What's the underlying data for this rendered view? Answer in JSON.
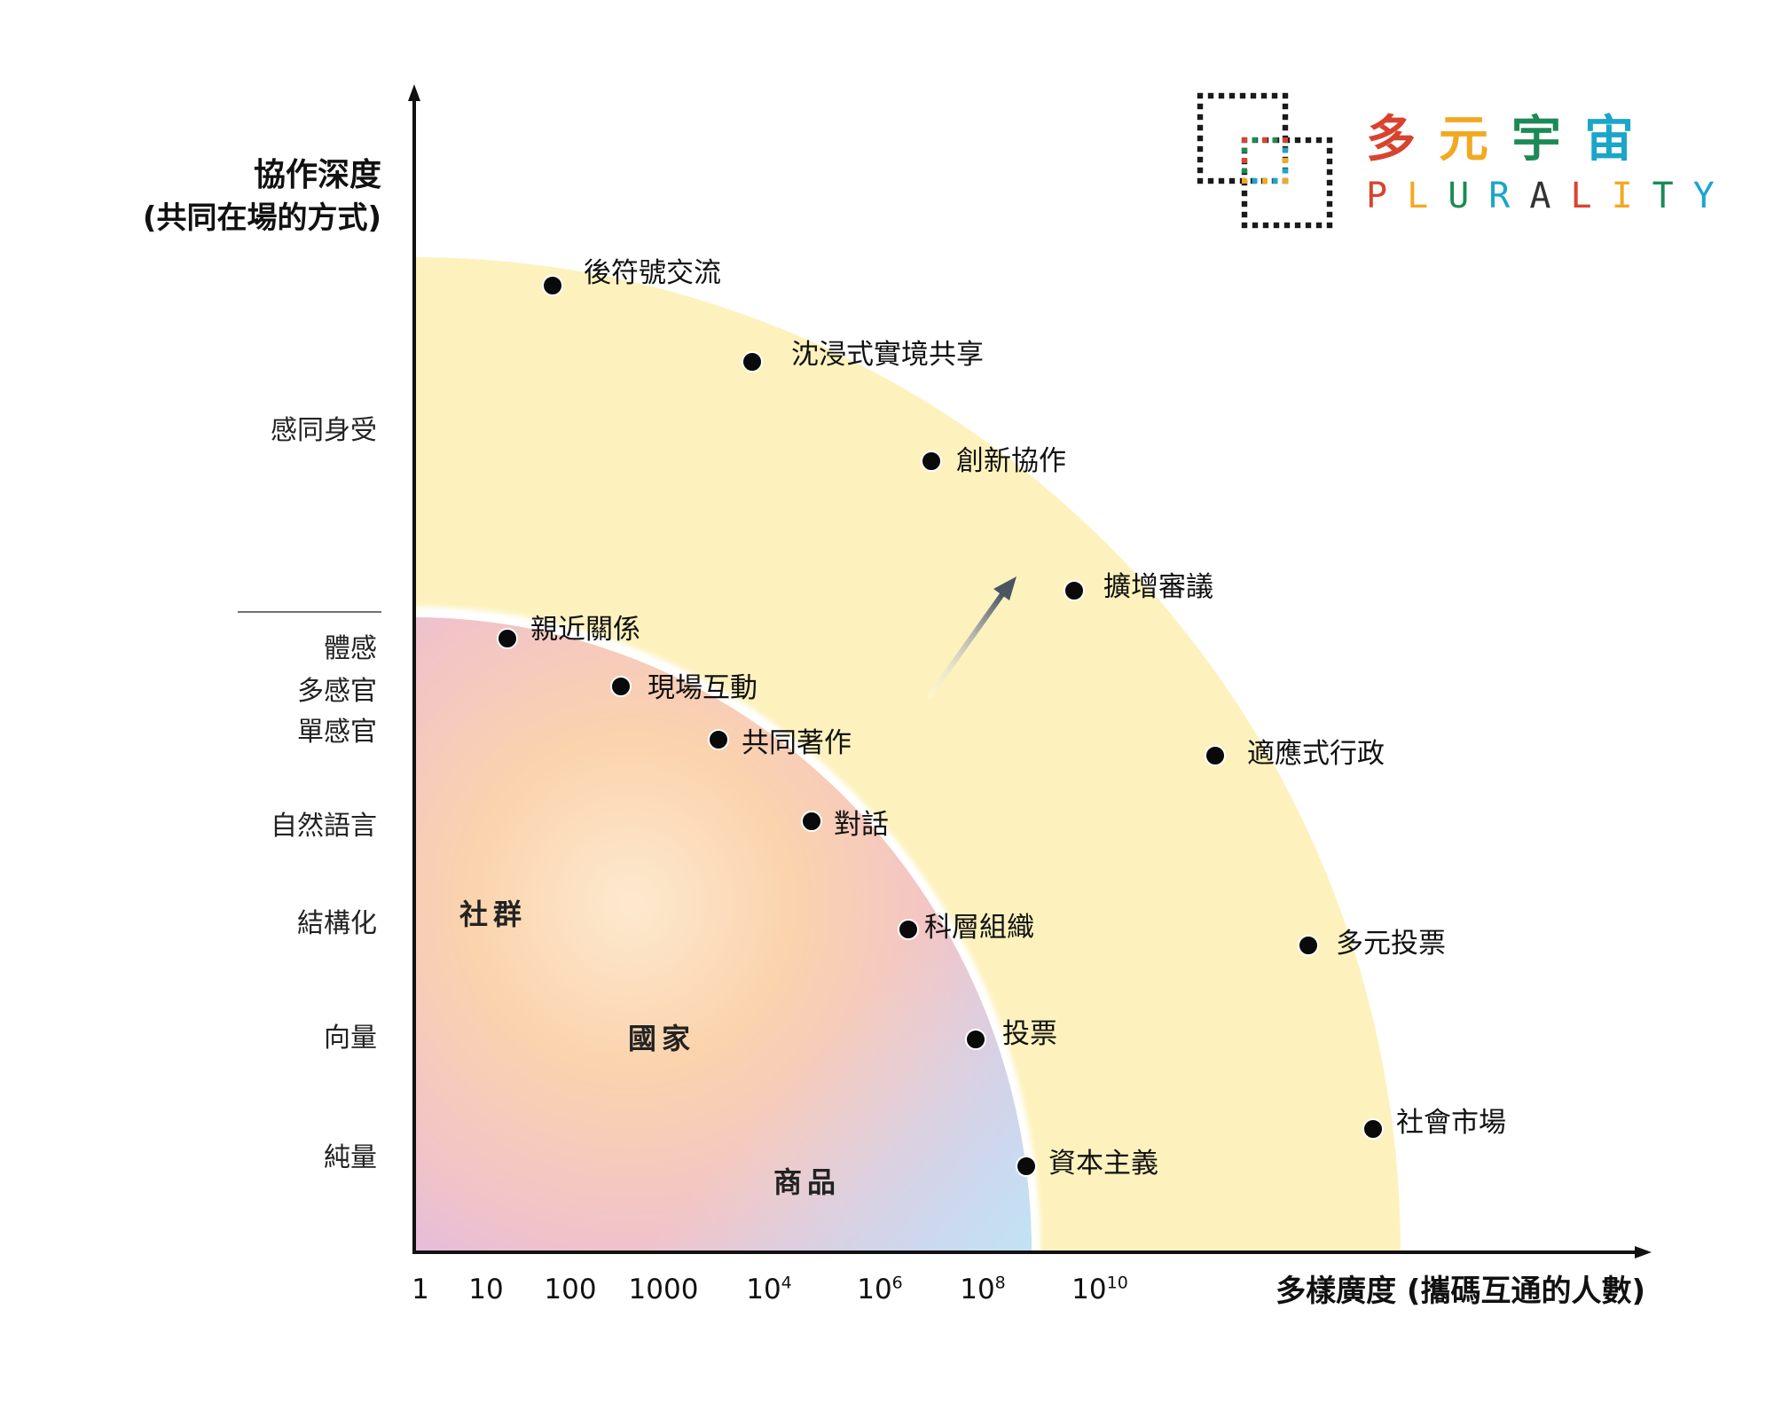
{
  "logo": {
    "chinese_chars": [
      {
        "text": "多",
        "color": "#d8432f"
      },
      {
        "text": "元",
        "color": "#f2a922"
      },
      {
        "text": "宇",
        "color": "#1d8a55"
      },
      {
        "text": "宙",
        "color": "#1aa6c9"
      }
    ],
    "english_chars": [
      {
        "text": "P",
        "color": "#d8432f"
      },
      {
        "text": "L",
        "color": "#f2a922"
      },
      {
        "text": "U",
        "color": "#1d8a55"
      },
      {
        "text": "R",
        "color": "#1aa6c9"
      },
      {
        "text": "A",
        "color": "#333333"
      },
      {
        "text": "L",
        "color": "#d8432f"
      },
      {
        "text": "I",
        "color": "#f2a922"
      },
      {
        "text": "T",
        "color": "#1d8a55"
      },
      {
        "text": "Y",
        "color": "#1aa6c9"
      }
    ],
    "icon": "plurality-dotted-squares-icon"
  },
  "y_axis": {
    "title_line1": "協作深度",
    "title_line2": "(共同在場的方式)",
    "ticks": [
      "感同身受",
      "體感",
      "多感官",
      "單感官",
      "自然語言",
      "結構化",
      "向量",
      "純量"
    ]
  },
  "x_axis": {
    "title": "多樣廣度 (攜碼互通的人數)",
    "ticks": [
      {
        "base": "1",
        "exp": ""
      },
      {
        "base": "10",
        "exp": ""
      },
      {
        "base": "100",
        "exp": ""
      },
      {
        "base": "1000",
        "exp": ""
      },
      {
        "base": "10",
        "exp": "4"
      },
      {
        "base": "10",
        "exp": "6"
      },
      {
        "base": "10",
        "exp": "8"
      },
      {
        "base": "10",
        "exp": "10"
      }
    ]
  },
  "regions": {
    "inner_labels": [
      "社群",
      "國家",
      "商品"
    ],
    "outer_color": "#fdf2bd",
    "inner_colors": [
      "#dcb8e8",
      "#f6c9bf",
      "#fbd7a6",
      "#cdeaf2"
    ]
  },
  "inner_points": [
    "親近關係",
    "現場互動",
    "共同著作",
    "對話",
    "科層組織",
    "投票",
    "資本主義"
  ],
  "outer_points": [
    "後符號交流",
    "沈浸式實境共享",
    "創新協作",
    "擴增審議",
    "適應式行政",
    "多元投票",
    "社會市場"
  ]
}
